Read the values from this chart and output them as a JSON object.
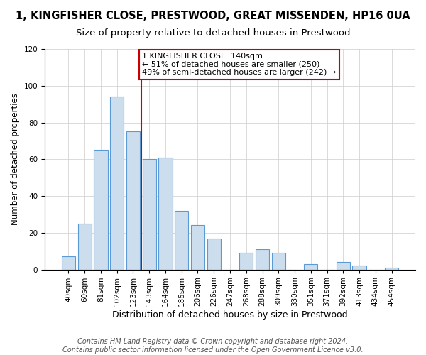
{
  "title": "1, KINGFISHER CLOSE, PRESTWOOD, GREAT MISSENDEN, HP16 0UA",
  "subtitle": "Size of property relative to detached houses in Prestwood",
  "xlabel": "Distribution of detached houses by size in Prestwood",
  "ylabel": "Number of detached properties",
  "bar_labels": [
    "40sqm",
    "60sqm",
    "81sqm",
    "102sqm",
    "123sqm",
    "143sqm",
    "164sqm",
    "185sqm",
    "206sqm",
    "226sqm",
    "247sqm",
    "268sqm",
    "288sqm",
    "309sqm",
    "330sqm",
    "351sqm",
    "371sqm",
    "392sqm",
    "413sqm",
    "434sqm",
    "454sqm"
  ],
  "bar_values": [
    7,
    25,
    65,
    94,
    75,
    60,
    61,
    32,
    24,
    17,
    0,
    9,
    11,
    9,
    0,
    3,
    0,
    4,
    2,
    0,
    1
  ],
  "bar_color": "#ccdded",
  "bar_edge_color": "#5b9bd5",
  "vline_color": "#cc0000",
  "ylim": [
    0,
    120
  ],
  "yticks": [
    0,
    20,
    40,
    60,
    80,
    100,
    120
  ],
  "annotation_title": "1 KINGFISHER CLOSE: 140sqm",
  "annotation_line1": "← 51% of detached houses are smaller (250)",
  "annotation_line2": "49% of semi-detached houses are larger (242) →",
  "annotation_box_edge": "#cc0000",
  "footer_line1": "Contains HM Land Registry data © Crown copyright and database right 2024.",
  "footer_line2": "Contains public sector information licensed under the Open Government Licence v3.0.",
  "title_fontsize": 10.5,
  "subtitle_fontsize": 9.5,
  "xlabel_fontsize": 9,
  "ylabel_fontsize": 8.5,
  "tick_fontsize": 7.5,
  "annotation_fontsize": 8,
  "footer_fontsize": 7
}
